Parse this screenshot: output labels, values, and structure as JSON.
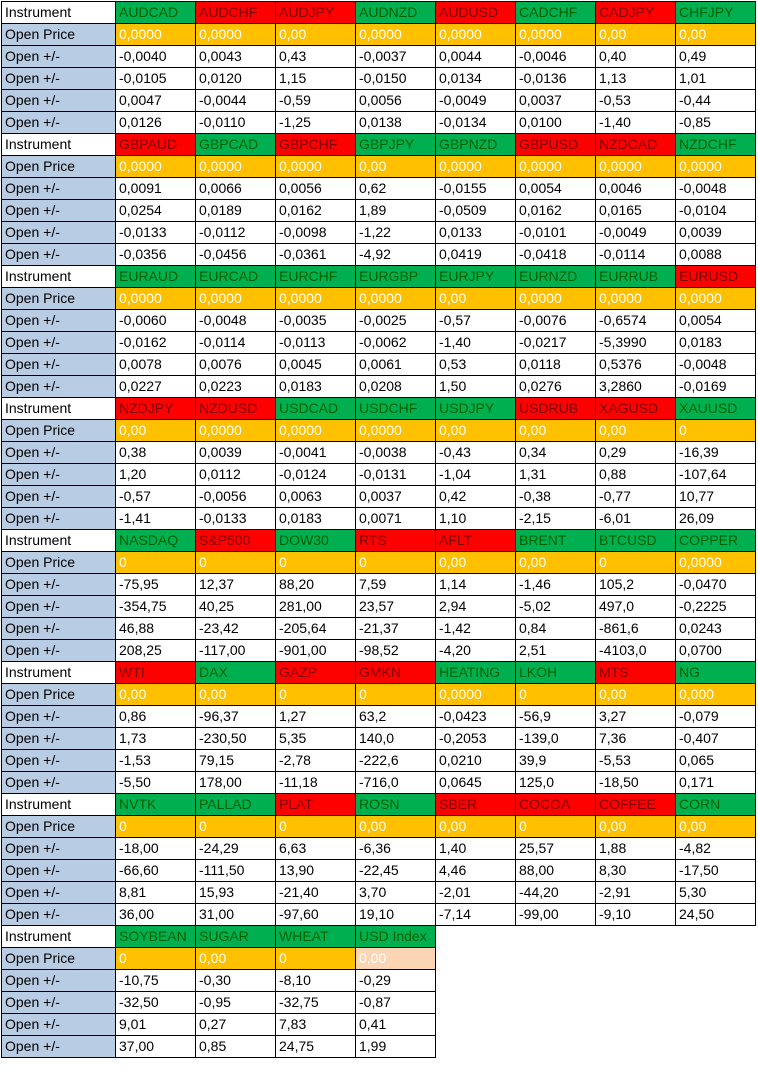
{
  "row_labels": {
    "instrument": "Instrument",
    "open_price": "Open Price",
    "open_change": "Open +/-"
  },
  "colors": {
    "label_column": "#b8cce4",
    "instrument_green_bg": "#00b050",
    "instrument_green_text": "#006100",
    "instrument_red_bg": "#ff0000",
    "instrument_red_text": "#7f0000",
    "open_price_bg": "#ffc000",
    "open_price_light_bg": "#fbd5b4",
    "grid": "#000000"
  },
  "blocks": [
    {
      "instruments": [
        {
          "name": "AUDCAD",
          "color": "green"
        },
        {
          "name": "AUDCHF",
          "color": "red"
        },
        {
          "name": "AUDJPY",
          "color": "red"
        },
        {
          "name": "AUDNZD",
          "color": "green"
        },
        {
          "name": "AUDUSD",
          "color": "red"
        },
        {
          "name": "CADCHF",
          "color": "green"
        },
        {
          "name": "CADJPY",
          "color": "red"
        },
        {
          "name": "CHFJPY",
          "color": "green"
        }
      ],
      "open_price": [
        "0,0000",
        "0,0000",
        "0,00",
        "0,0000",
        "0,0000",
        "0,0000",
        "0,00",
        "0,00"
      ],
      "light_open_price": [],
      "changes": [
        [
          "-0,0040",
          "0,0043",
          "0,43",
          "-0,0037",
          "0,0044",
          "-0,0046",
          "0,40",
          "0,49"
        ],
        [
          "-0,0105",
          "0,0120",
          "1,15",
          "-0,0150",
          "0,0134",
          "-0,0136",
          "1,13",
          "1,01"
        ],
        [
          "0,0047",
          "-0,0044",
          "-0,59",
          "0,0056",
          "-0,0049",
          "0,0037",
          "-0,53",
          "-0,44"
        ],
        [
          "0,0126",
          "-0,0110",
          "-1,25",
          "0,0138",
          "-0,0134",
          "0,0100",
          "-1,40",
          "-0,85"
        ]
      ]
    },
    {
      "instruments": [
        {
          "name": "GBPAUD",
          "color": "red"
        },
        {
          "name": "GBPCAD",
          "color": "green"
        },
        {
          "name": "GBPCHF",
          "color": "red"
        },
        {
          "name": "GBPJPY",
          "color": "green"
        },
        {
          "name": "GBPNZD",
          "color": "green"
        },
        {
          "name": "GBPUSD",
          "color": "red"
        },
        {
          "name": "NZDCAD",
          "color": "red"
        },
        {
          "name": "NZDCHF",
          "color": "green"
        }
      ],
      "open_price": [
        "0,0000",
        "0,0000",
        "0,0000",
        "0,00",
        "0,0000",
        "0,0000",
        "0,0000",
        "0,0000"
      ],
      "light_open_price": [],
      "changes": [
        [
          "0,0091",
          "0,0066",
          "0,0056",
          "0,62",
          "-0,0155",
          "0,0054",
          "0,0046",
          "-0,0048"
        ],
        [
          "0,0254",
          "0,0189",
          "0,0162",
          "1,89",
          "-0,0509",
          "0,0162",
          "0,0165",
          "-0,0104"
        ],
        [
          "-0,0133",
          "-0,0112",
          "-0,0098",
          "-1,22",
          "0,0133",
          "-0,0101",
          "-0,0049",
          "0,0039"
        ],
        [
          "-0,0356",
          "-0,0456",
          "-0,0361",
          "-4,92",
          "0,0419",
          "-0,0418",
          "-0,0114",
          "0,0088"
        ]
      ]
    },
    {
      "instruments": [
        {
          "name": "EURAUD",
          "color": "green"
        },
        {
          "name": "EURCAD",
          "color": "green"
        },
        {
          "name": "EURCHF",
          "color": "green"
        },
        {
          "name": "EURGBP",
          "color": "green"
        },
        {
          "name": "EURJPY",
          "color": "green"
        },
        {
          "name": "EURNZD",
          "color": "green"
        },
        {
          "name": "EURRUB",
          "color": "green"
        },
        {
          "name": "EURUSD",
          "color": "red"
        }
      ],
      "open_price": [
        "0,0000",
        "0,0000",
        "0,0000",
        "0,0000",
        "0,00",
        "0,0000",
        "0,0000",
        "0,0000"
      ],
      "light_open_price": [],
      "changes": [
        [
          "-0,0060",
          "-0,0048",
          "-0,0035",
          "-0,0025",
          "-0,57",
          "-0,0076",
          "-0,6574",
          "0,0054"
        ],
        [
          "-0,0162",
          "-0,0114",
          "-0,0113",
          "-0,0062",
          "-1,40",
          "-0,0217",
          "-5,3990",
          "0,0183"
        ],
        [
          "0,0078",
          "0,0076",
          "0,0045",
          "0,0061",
          "0,53",
          "0,0118",
          "0,5376",
          "-0,0048"
        ],
        [
          "0,0227",
          "0,0223",
          "0,0183",
          "0,0208",
          "1,50",
          "0,0276",
          "3,2860",
          "-0,0169"
        ]
      ]
    },
    {
      "instruments": [
        {
          "name": "NZDJPY",
          "color": "red"
        },
        {
          "name": "NZDUSD",
          "color": "red"
        },
        {
          "name": "USDCAD",
          "color": "green"
        },
        {
          "name": "USDCHF",
          "color": "green"
        },
        {
          "name": "USDJPY",
          "color": "green"
        },
        {
          "name": "USDRUB",
          "color": "red"
        },
        {
          "name": "XAGUSD",
          "color": "red"
        },
        {
          "name": "XAUUSD",
          "color": "green"
        }
      ],
      "open_price": [
        "0,00",
        "0,0000",
        "0,0000",
        "0,0000",
        "0,00",
        "0,00",
        "0,00",
        "0"
      ],
      "light_open_price": [],
      "changes": [
        [
          "0,38",
          "0,0039",
          "-0,0041",
          "-0,0038",
          "-0,43",
          "0,34",
          "0,29",
          "-16,39"
        ],
        [
          "1,20",
          "0,0112",
          "-0,0124",
          "-0,0131",
          "-1,04",
          "1,31",
          "0,88",
          "-107,64"
        ],
        [
          "-0,57",
          "-0,0056",
          "0,0063",
          "0,0037",
          "0,42",
          "-0,38",
          "-0,77",
          "10,77"
        ],
        [
          "-1,41",
          "-0,0133",
          "0,0183",
          "0,0071",
          "1,10",
          "-2,15",
          "-6,01",
          "26,09"
        ]
      ]
    },
    {
      "instruments": [
        {
          "name": "NASDAQ",
          "color": "green"
        },
        {
          "name": "S&P500",
          "color": "red"
        },
        {
          "name": "DOW30",
          "color": "green"
        },
        {
          "name": "RTS",
          "color": "red"
        },
        {
          "name": "AFLT",
          "color": "red"
        },
        {
          "name": "BRENT",
          "color": "green"
        },
        {
          "name": "BTCUSD",
          "color": "green"
        },
        {
          "name": "COPPER",
          "color": "green"
        }
      ],
      "open_price": [
        "0",
        "0",
        "0",
        "0",
        "0,00",
        "0,00",
        "0",
        "0,0000"
      ],
      "light_open_price": [],
      "changes": [
        [
          "-75,95",
          "12,37",
          "88,20",
          "7,59",
          "1,14",
          "-1,46",
          "105,2",
          "-0,0470"
        ],
        [
          "-354,75",
          "40,25",
          "281,00",
          "23,57",
          "2,94",
          "-5,02",
          "497,0",
          "-0,2225"
        ],
        [
          "46,88",
          "-23,42",
          "-205,64",
          "-21,37",
          "-1,42",
          "0,84",
          "-861,6",
          "0,0243"
        ],
        [
          "208,25",
          "-117,00",
          "-901,00",
          "-98,52",
          "-4,20",
          "2,51",
          "-4103,0",
          "0,0700"
        ]
      ]
    },
    {
      "instruments": [
        {
          "name": "WTI",
          "color": "red"
        },
        {
          "name": "DAX",
          "color": "green"
        },
        {
          "name": "GAZP",
          "color": "red"
        },
        {
          "name": "GMKN",
          "color": "red"
        },
        {
          "name": "HEATING",
          "color": "green"
        },
        {
          "name": "LKOH",
          "color": "green"
        },
        {
          "name": "MTS",
          "color": "red"
        },
        {
          "name": "NG",
          "color": "green"
        }
      ],
      "open_price": [
        "0,00",
        "0,00",
        "0",
        "0",
        "0,0000",
        "0",
        "0,00",
        "0,000"
      ],
      "light_open_price": [],
      "changes": [
        [
          "0,86",
          "-96,37",
          "1,27",
          "63,2",
          "-0,0423",
          "-56,9",
          "3,27",
          "-0,079"
        ],
        [
          "1,73",
          "-230,50",
          "5,35",
          "140,0",
          "-0,2053",
          "-139,0",
          "7,36",
          "-0,407"
        ],
        [
          "-1,53",
          "79,15",
          "-2,78",
          "-222,6",
          "0,0210",
          "39,9",
          "-5,53",
          "0,065"
        ],
        [
          "-5,50",
          "178,00",
          "-11,18",
          "-716,0",
          "0,0645",
          "125,0",
          "-18,50",
          "0,171"
        ]
      ]
    },
    {
      "instruments": [
        {
          "name": "NVTK",
          "color": "green"
        },
        {
          "name": "PALLAD",
          "color": "green"
        },
        {
          "name": "PLAT",
          "color": "red"
        },
        {
          "name": "ROSN",
          "color": "green"
        },
        {
          "name": "SBER",
          "color": "red"
        },
        {
          "name": "COCOA",
          "color": "red"
        },
        {
          "name": "COFFEE",
          "color": "red"
        },
        {
          "name": "CORN",
          "color": "green"
        }
      ],
      "open_price": [
        "0",
        "0",
        "0",
        "0,00",
        "0,00",
        "0",
        "0,00",
        "0,00"
      ],
      "light_open_price": [],
      "changes": [
        [
          "-18,00",
          "-24,29",
          "6,63",
          "-6,36",
          "1,40",
          "25,57",
          "1,88",
          "-4,82"
        ],
        [
          "-66,60",
          "-111,50",
          "13,90",
          "-22,45",
          "4,46",
          "88,00",
          "8,30",
          "-17,50"
        ],
        [
          "8,81",
          "15,93",
          "-21,40",
          "3,70",
          "-2,01",
          "-44,20",
          "-2,91",
          "5,30"
        ],
        [
          "36,00",
          "31,00",
          "-97,60",
          "19,10",
          "-7,14",
          "-99,00",
          "-9,10",
          "24,50"
        ]
      ]
    },
    {
      "instruments": [
        {
          "name": "SOYBEAN",
          "color": "green"
        },
        {
          "name": "SUGAR",
          "color": "green"
        },
        {
          "name": "WHEAT",
          "color": "green"
        },
        {
          "name": "USD Index",
          "color": "green"
        }
      ],
      "open_price": [
        "0",
        "0,00",
        "0",
        "0,00"
      ],
      "light_open_price": [
        3
      ],
      "changes": [
        [
          "-10,75",
          "-0,30",
          "-8,10",
          "-0,29"
        ],
        [
          "-32,50",
          "-0,95",
          "-32,75",
          "-0,87"
        ],
        [
          "9,01",
          "0,27",
          "7,83",
          "0,41"
        ],
        [
          "37,00",
          "0,85",
          "24,75",
          "1,99"
        ]
      ]
    }
  ]
}
